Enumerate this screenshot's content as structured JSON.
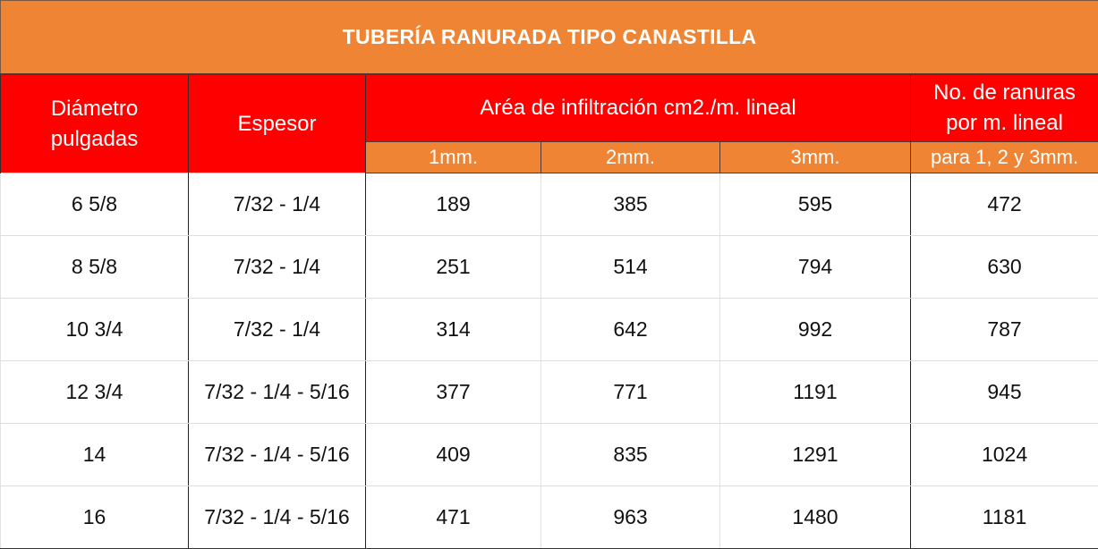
{
  "title": "TUBERÍA RANURADA TIPO CANASTILLA",
  "header": {
    "diametro": "Diámetro pulgadas",
    "espesor": "Espesor",
    "area": "Aréa de infiltración cm2./m. lineal",
    "ranuras": "No. de ranuras por m. lineal",
    "sub_1mm": "1mm.",
    "sub_2mm": "2mm.",
    "sub_3mm": "3mm.",
    "sub_ranuras": "para 1, 2 y 3mm."
  },
  "rows": [
    {
      "diametro": "6 5/8",
      "espesor": "7/32 - 1/4",
      "a1": "189",
      "a2": "385",
      "a3": "595",
      "ranuras": "472"
    },
    {
      "diametro": "8 5/8",
      "espesor": "7/32 - 1/4",
      "a1": "251",
      "a2": "514",
      "a3": "794",
      "ranuras": "630"
    },
    {
      "diametro": "10 3/4",
      "espesor": "7/32 - 1/4",
      "a1": "314",
      "a2": "642",
      "a3": "992",
      "ranuras": "787"
    },
    {
      "diametro": "12 3/4",
      "espesor": "7/32 - 1/4 - 5/16",
      "a1": "377",
      "a2": "771",
      "a3": "1191",
      "ranuras": "945"
    },
    {
      "diametro": "14",
      "espesor": "7/32 - 1/4 - 5/16",
      "a1": "409",
      "a2": "835",
      "a3": "1291",
      "ranuras": "1024"
    },
    {
      "diametro": "16",
      "espesor": "7/32 - 1/4 - 5/16",
      "a1": "471",
      "a2": "963",
      "a3": "1480",
      "ranuras": "1181"
    }
  ],
  "colors": {
    "title_bg": "#ee8434",
    "header_red": "#ff0000",
    "subheader_orange": "#ee8434"
  }
}
